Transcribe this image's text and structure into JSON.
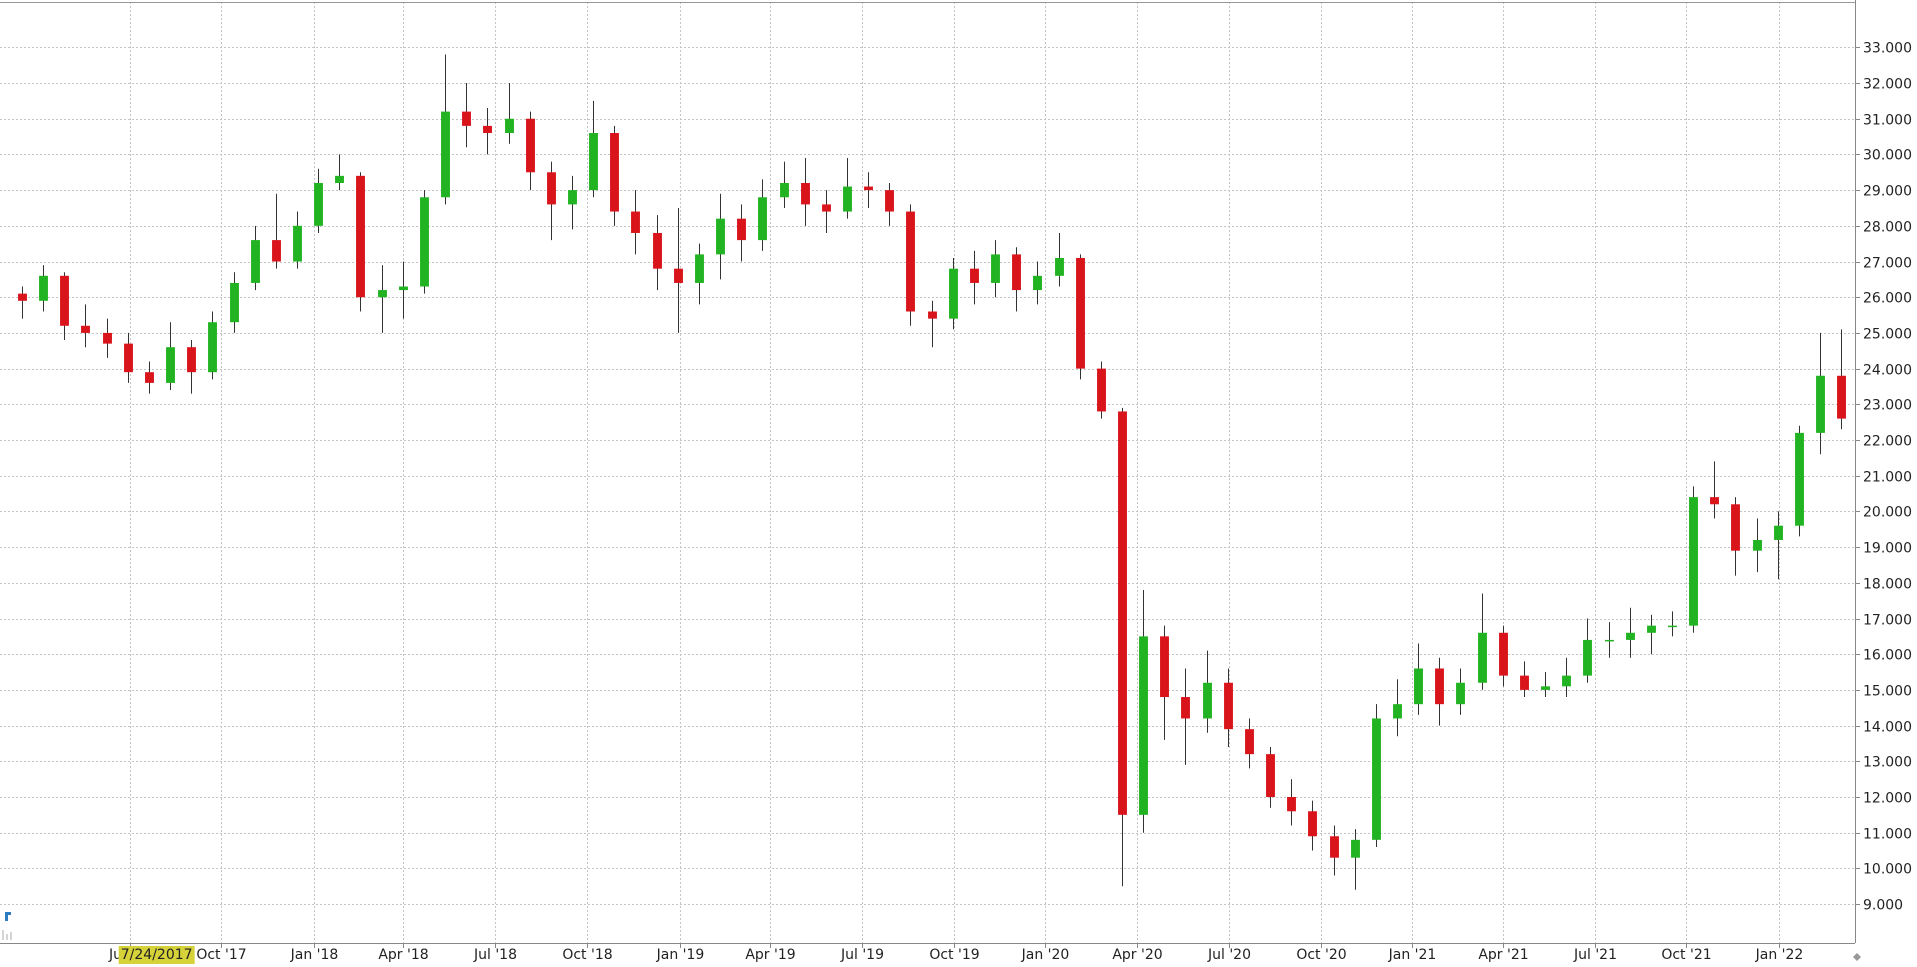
{
  "chart_data": {
    "type": "candlestick",
    "cursor_label": "7/24/2017",
    "up_color": "#21b321",
    "down_color": "#d9141b",
    "grid": true,
    "xlim": [
      -1.04,
      86.65
    ],
    "ylim": [
      7.91,
      34.27
    ],
    "xticks": [
      {
        "value": 5.09,
        "label": "Jul '17"
      },
      {
        "value": 9.42,
        "label": "Oct '17"
      },
      {
        "value": 13.82,
        "label": "Jan '18"
      },
      {
        "value": 18.03,
        "label": "Apr '18"
      },
      {
        "value": 22.37,
        "label": "Jul '18"
      },
      {
        "value": 26.71,
        "label": "Oct '18"
      },
      {
        "value": 31.1,
        "label": "Jan '19"
      },
      {
        "value": 35.38,
        "label": "Apr '19"
      },
      {
        "value": 39.71,
        "label": "Jul '19"
      },
      {
        "value": 44.05,
        "label": "Oct '19"
      },
      {
        "value": 48.38,
        "label": "Jan '20"
      },
      {
        "value": 52.72,
        "label": "Apr '20"
      },
      {
        "value": 57.05,
        "label": "Jul '20"
      },
      {
        "value": 61.39,
        "label": "Oct '20"
      },
      {
        "value": 65.72,
        "label": "Jan '21"
      },
      {
        "value": 70.0,
        "label": "Apr '21"
      },
      {
        "value": 74.34,
        "label": "Jul '21"
      },
      {
        "value": 78.67,
        "label": "Oct '21"
      },
      {
        "value": 83.06,
        "label": "Jan '22"
      }
    ],
    "yticks": [
      {
        "value": 9,
        "label": "9.000"
      },
      {
        "value": 10,
        "label": "10.000"
      },
      {
        "value": 11,
        "label": "11.000"
      },
      {
        "value": 12,
        "label": "12.000"
      },
      {
        "value": 13,
        "label": "13.000"
      },
      {
        "value": 14,
        "label": "14.000"
      },
      {
        "value": 15,
        "label": "15.000"
      },
      {
        "value": 16,
        "label": "16.000"
      },
      {
        "value": 17,
        "label": "17.000"
      },
      {
        "value": 18,
        "label": "18.000"
      },
      {
        "value": 19,
        "label": "19.000"
      },
      {
        "value": 20,
        "label": "20.000"
      },
      {
        "value": 21,
        "label": "21.000"
      },
      {
        "value": 22,
        "label": "22.000"
      },
      {
        "value": 23,
        "label": "23.000"
      },
      {
        "value": 24,
        "label": "24.000"
      },
      {
        "value": 25,
        "label": "25.000"
      },
      {
        "value": 26,
        "label": "26.000"
      },
      {
        "value": 27,
        "label": "27.000"
      },
      {
        "value": 28,
        "label": "28.000"
      },
      {
        "value": 29,
        "label": "29.000"
      },
      {
        "value": 30,
        "label": "30.000"
      },
      {
        "value": 31,
        "label": "31.000"
      },
      {
        "value": 32,
        "label": "32.000"
      },
      {
        "value": 33,
        "label": "33.000"
      }
    ],
    "open": [
      26.1,
      25.9,
      26.6,
      25.2,
      25.0,
      24.7,
      23.9,
      23.6,
      24.6,
      23.9,
      25.3,
      26.4,
      27.6,
      27.0,
      28.0,
      29.2,
      29.4,
      26.0,
      26.2,
      26.3,
      28.8,
      31.2,
      30.8,
      30.6,
      31.0,
      29.5,
      28.6,
      29.0,
      30.6,
      28.4,
      27.8,
      26.8,
      26.4,
      27.2,
      28.2,
      27.6,
      28.8,
      29.2,
      28.6,
      28.4,
      29.1,
      29.0,
      28.4,
      25.6,
      25.4,
      26.8,
      26.4,
      27.2,
      26.2,
      26.6,
      27.1,
      24.0,
      22.8,
      11.5,
      16.5,
      14.8,
      14.2,
      15.2,
      13.9,
      13.2,
      12.0,
      11.6,
      10.9,
      10.3,
      10.8,
      14.2,
      14.6,
      15.6,
      14.6,
      15.2,
      16.6,
      15.4,
      15.0,
      15.1,
      15.4,
      16.4,
      16.4,
      16.6,
      16.8,
      16.8,
      20.4,
      20.2,
      18.9,
      19.2,
      19.6,
      22.2,
      23.8
    ],
    "high": [
      26.3,
      26.9,
      26.7,
      25.8,
      25.4,
      25.0,
      24.2,
      25.3,
      24.8,
      25.6,
      26.7,
      28.0,
      28.9,
      28.4,
      29.6,
      30.0,
      29.5,
      26.9,
      27.0,
      29.0,
      32.8,
      32.0,
      31.3,
      32.0,
      31.2,
      29.8,
      29.4,
      31.5,
      30.8,
      29.0,
      28.3,
      28.5,
      27.5,
      28.9,
      28.6,
      29.3,
      29.8,
      29.9,
      29.0,
      29.9,
      29.5,
      29.2,
      28.6,
      25.9,
      27.1,
      27.3,
      27.6,
      27.4,
      27.0,
      27.8,
      27.2,
      24.2,
      22.9,
      17.8,
      16.8,
      15.6,
      16.1,
      15.6,
      14.2,
      13.4,
      12.5,
      11.9,
      11.2,
      11.1,
      14.6,
      15.3,
      16.3,
      15.9,
      15.6,
      17.7,
      16.8,
      15.8,
      15.5,
      15.9,
      17.0,
      16.9,
      17.3,
      17.1,
      17.2,
      20.7,
      21.4,
      20.4,
      19.8,
      20.0,
      22.4,
      25.0,
      25.1
    ],
    "low": [
      25.4,
      25.6,
      24.8,
      24.6,
      24.3,
      23.6,
      23.3,
      23.4,
      23.3,
      23.7,
      25.0,
      26.2,
      26.8,
      26.8,
      27.8,
      29.0,
      25.6,
      25.0,
      25.4,
      26.1,
      28.6,
      30.2,
      30.0,
      30.3,
      29.0,
      27.6,
      27.9,
      28.8,
      28.0,
      27.2,
      26.2,
      25.0,
      25.8,
      26.5,
      27.0,
      27.3,
      28.5,
      28.0,
      27.8,
      28.2,
      28.5,
      28.0,
      25.2,
      24.6,
      25.1,
      25.8,
      26.0,
      25.6,
      25.8,
      26.3,
      23.7,
      22.6,
      9.5,
      11.0,
      13.6,
      12.9,
      13.8,
      13.4,
      12.8,
      11.7,
      11.2,
      10.5,
      9.8,
      9.4,
      10.6,
      13.7,
      14.3,
      14.0,
      14.3,
      15.0,
      15.1,
      14.8,
      14.8,
      14.8,
      15.2,
      15.9,
      15.9,
      16.0,
      16.5,
      16.6,
      19.8,
      18.2,
      18.3,
      18.1,
      19.3,
      21.6,
      22.3
    ],
    "close": [
      25.9,
      26.6,
      25.2,
      25.0,
      24.7,
      23.9,
      23.6,
      24.6,
      23.9,
      25.3,
      26.4,
      27.6,
      27.0,
      28.0,
      29.2,
      29.4,
      26.0,
      26.2,
      26.3,
      28.8,
      31.2,
      30.8,
      30.6,
      31.0,
      29.5,
      28.6,
      29.0,
      30.6,
      28.4,
      27.8,
      26.8,
      26.4,
      27.2,
      28.2,
      27.6,
      28.8,
      29.2,
      28.6,
      28.4,
      29.1,
      29.0,
      28.4,
      25.6,
      25.4,
      26.8,
      26.4,
      27.2,
      26.2,
      26.6,
      27.1,
      24.0,
      22.8,
      11.5,
      16.5,
      14.8,
      14.2,
      15.2,
      13.9,
      13.2,
      12.0,
      11.6,
      10.9,
      10.3,
      10.8,
      14.2,
      14.6,
      15.6,
      14.6,
      15.2,
      16.6,
      15.4,
      15.0,
      15.1,
      15.4,
      16.4,
      16.4,
      16.6,
      16.8,
      16.8,
      20.4,
      20.2,
      18.9,
      19.2,
      19.6,
      22.2,
      23.8,
      22.6
    ]
  }
}
